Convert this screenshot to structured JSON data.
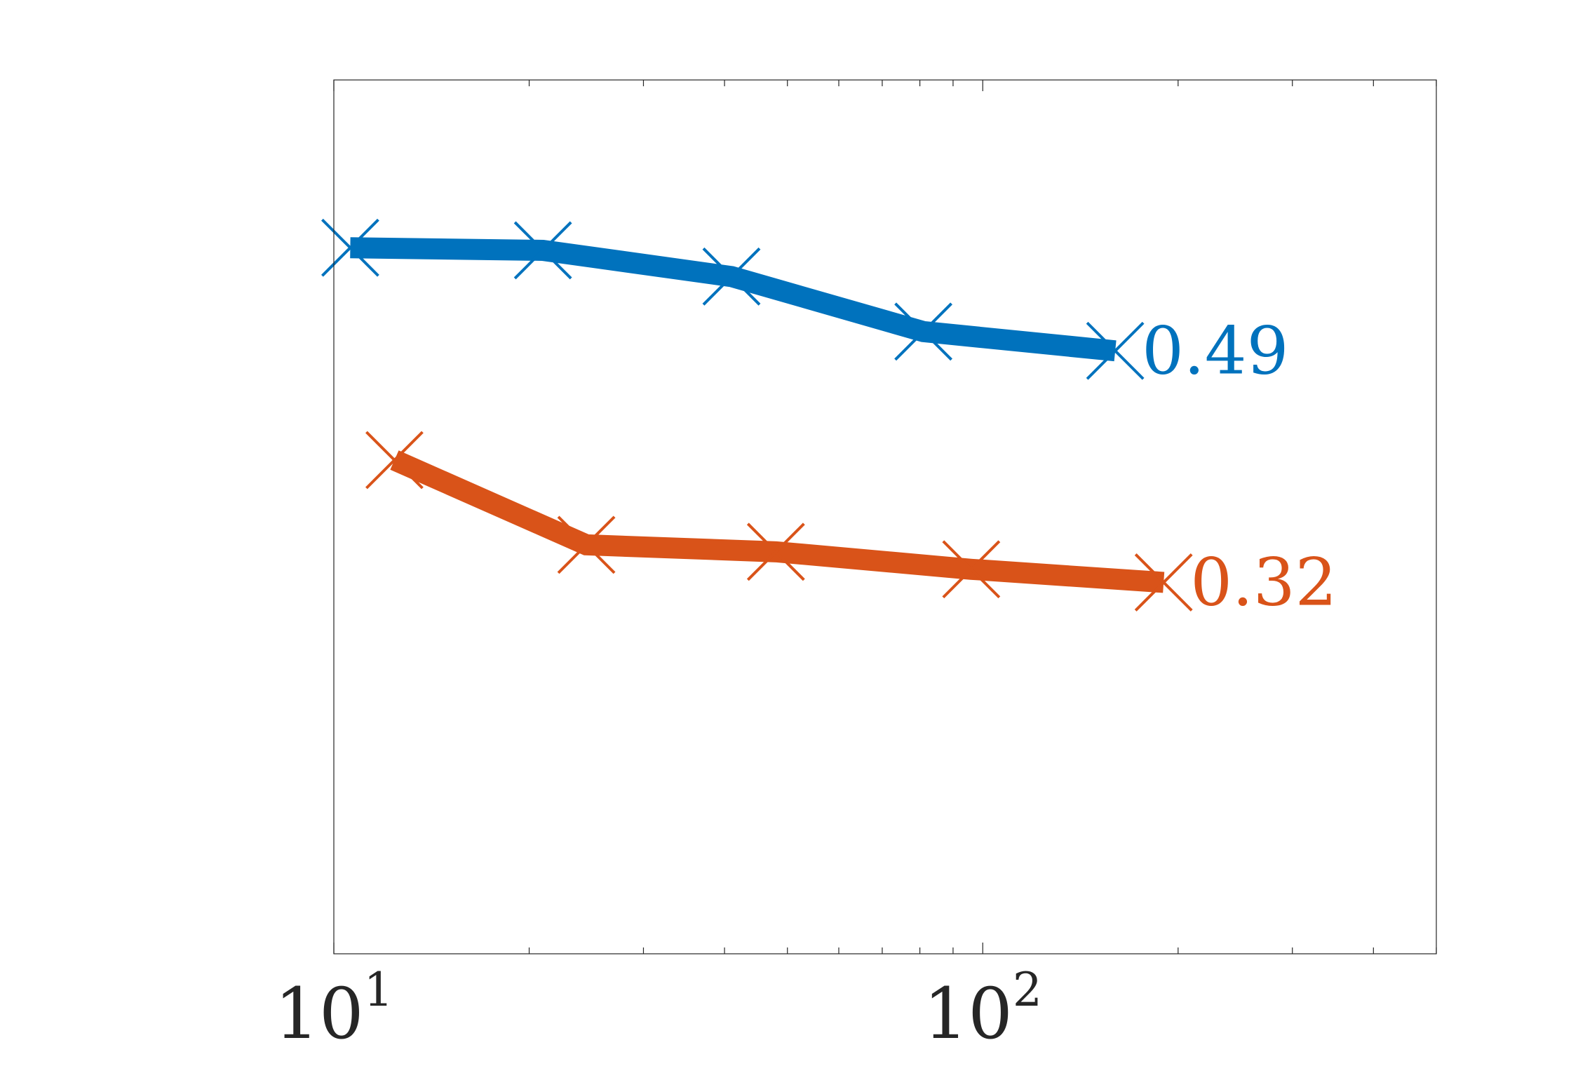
{
  "chart_data": {
    "type": "line",
    "xscale": "log",
    "xlim": [
      10,
      500
    ],
    "ylim": [
      0,
      1
    ],
    "grid": false,
    "title": "",
    "xlabel": "",
    "ylabel": "",
    "x_ticks": [
      {
        "base": "10",
        "exp": "1",
        "value": 10
      },
      {
        "base": "10",
        "exp": "2",
        "value": 100
      }
    ],
    "series": [
      {
        "color": "#0072BD",
        "marker": "x-icon",
        "x": [
          10.6,
          21,
          41,
          81,
          160
        ],
        "y": [
          0.808,
          0.805,
          0.775,
          0.712,
          0.69
        ],
        "end_label": "0.49"
      },
      {
        "color": "#D95319",
        "marker": "x-icon",
        "x": [
          12.4,
          24.5,
          48,
          96,
          190
        ],
        "y": [
          0.565,
          0.468,
          0.46,
          0.44,
          0.425
        ],
        "end_label": "0.32"
      }
    ]
  }
}
